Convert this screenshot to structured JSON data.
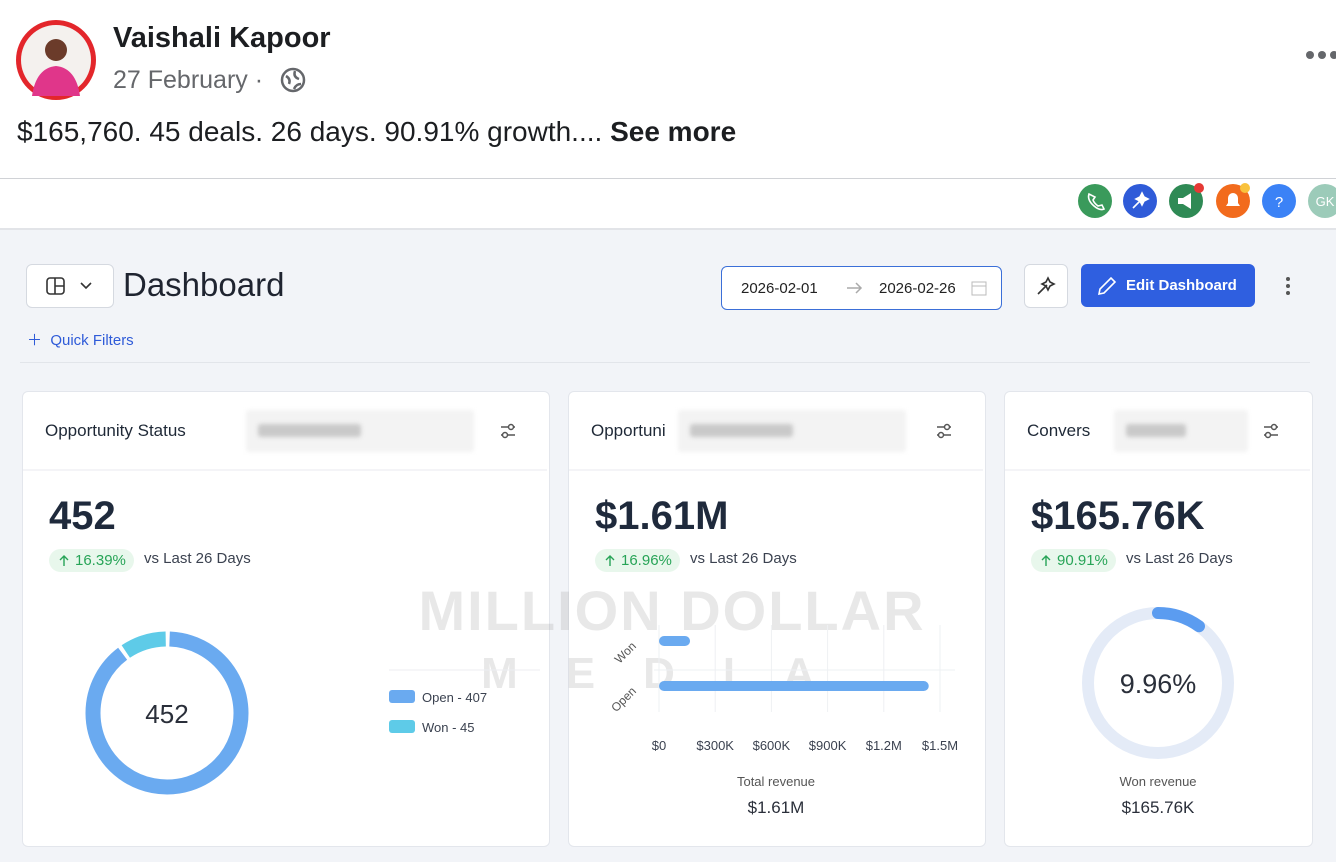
{
  "post": {
    "author": "Vaishali Kapoor",
    "date": "27 February",
    "separator": "·",
    "text": "$165,760. 45 deals. 26 days. 90.91% growth....",
    "see_more": "See more"
  },
  "toolbar": {
    "help": "?",
    "avatar_initials": "GK"
  },
  "dashboard": {
    "title": "Dashboard",
    "quick_filters": "Quick Filters",
    "date_from": "2026-02-01",
    "date_to": "2026-02-26",
    "edit_button": "Edit Dashboard"
  },
  "watermark": {
    "line1": "MILLION DOLLAR",
    "line2": "MEDIA"
  },
  "cards": [
    {
      "title": "Opportunity Status",
      "metric": "452",
      "change": "16.39%",
      "comparison": "vs Last 26 Days",
      "chart_data": {
        "type": "donut",
        "center_label": "452",
        "categories": [
          "Open",
          "Won"
        ],
        "values": [
          407,
          45
        ],
        "legend_labels": [
          "Open - 407",
          "Won - 45"
        ],
        "colors": [
          "#6aaaf0",
          "#5ecbe8"
        ]
      }
    },
    {
      "title": "Opportuni",
      "metric": "$1.61M",
      "change": "16.96%",
      "comparison": "vs Last 26 Days",
      "chart_data": {
        "type": "bar",
        "orientation": "horizontal",
        "categories": [
          "Won",
          "Open"
        ],
        "values": [
          165760,
          1440000
        ],
        "color": "#6aaaf0",
        "xlim": [
          0,
          1500000
        ],
        "xticks": [
          {
            "value": 0,
            "label": "$0"
          },
          {
            "value": 300000,
            "label": "$300K"
          },
          {
            "value": 600000,
            "label": "$600K"
          },
          {
            "value": 900000,
            "label": "$900K"
          },
          {
            "value": 1200000,
            "label": "$1.2M"
          },
          {
            "value": 1500000,
            "label": "$1.5M"
          }
        ],
        "grid": true,
        "footer_label": "Total revenue",
        "footer_value": "$1.61M"
      }
    },
    {
      "title": "Convers",
      "metric": "$165.76K",
      "change": "90.91%",
      "comparison": "vs Last 26 Days",
      "chart_data": {
        "type": "gauge",
        "value": 9.96,
        "value_label": "9.96%",
        "ylim": [
          0,
          100
        ],
        "color": "#5b9cf0",
        "track_color": "#e4ebf7",
        "footer_label": "Won revenue",
        "footer_value": "$165.76K"
      }
    }
  ]
}
